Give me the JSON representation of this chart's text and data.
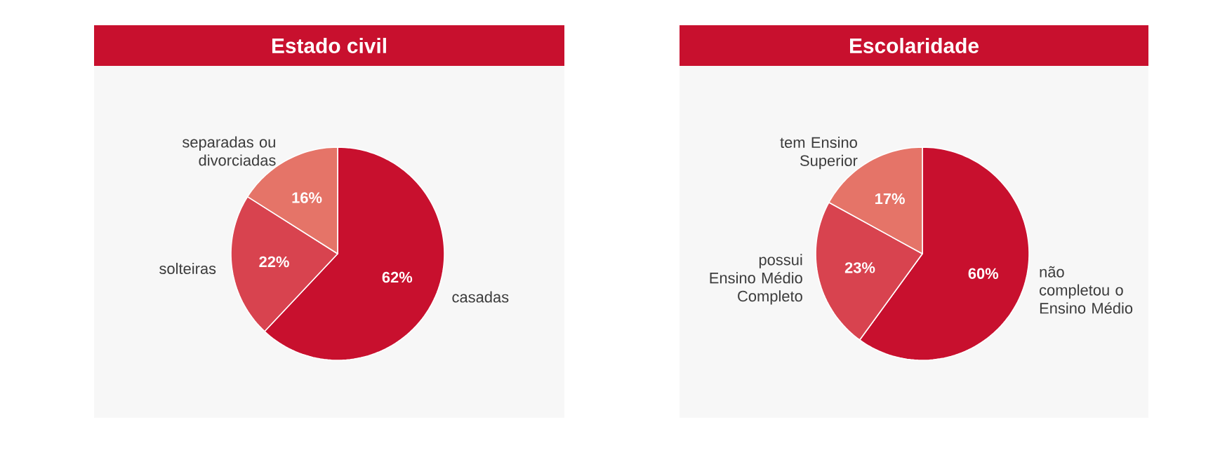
{
  "chart_data": [
    {
      "type": "pie",
      "title": "Estado civil",
      "categories": [
        "casadas",
        "solteiras",
        "separadas ou divorciadas"
      ],
      "values": [
        62,
        22,
        16
      ],
      "colors": [
        "#c8102e",
        "#d8434f",
        "#e57468"
      ],
      "value_labels": [
        "62%",
        "22%",
        "16%"
      ]
    },
    {
      "type": "pie",
      "title": "Escolaridade",
      "categories": [
        "não completou o Ensino Médio",
        "possui Ensino Médio Completo",
        "tem Ensino Superior"
      ],
      "values": [
        60,
        23,
        17
      ],
      "colors": [
        "#c8102e",
        "#d8434f",
        "#e57468"
      ],
      "value_labels": [
        "60%",
        "23%",
        "17%"
      ]
    }
  ]
}
